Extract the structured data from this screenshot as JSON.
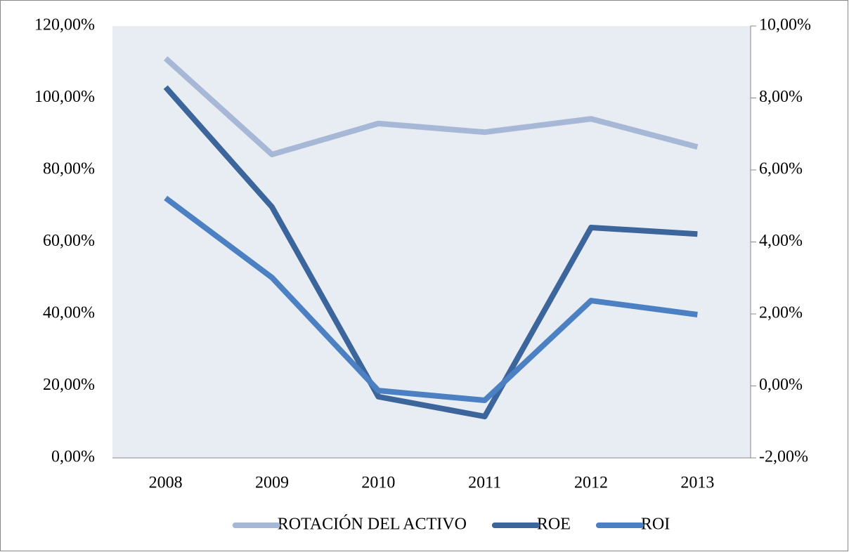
{
  "chart_data": {
    "type": "line",
    "categories": [
      "2008",
      "2009",
      "2010",
      "2011",
      "2012",
      "2013"
    ],
    "series": [
      {
        "name": "ROTACIÓN DEL ACTIVO",
        "color": "#a7b7d6",
        "values": [
          111.0,
          84.3,
          92.9,
          90.5,
          94.2,
          86.4
        ]
      },
      {
        "name": "ROE",
        "color": "#3b659b",
        "axis": "y2",
        "values": [
          8.3,
          4.97,
          -0.3,
          -0.85,
          4.4,
          4.22
        ]
      },
      {
        "name": "ROI",
        "color": "#4b80c2",
        "axis": "y2",
        "values": [
          5.22,
          3.01,
          -0.13,
          -0.4,
          2.37,
          1.98
        ]
      }
    ],
    "ylim": [
      0,
      120
    ],
    "yticks": [
      {
        "value": 0,
        "label": "0,00%"
      },
      {
        "value": 20,
        "label": "20,00%"
      },
      {
        "value": 40,
        "label": "40,00%"
      },
      {
        "value": 60,
        "label": "60,00%"
      },
      {
        "value": 80,
        "label": "80,00%"
      },
      {
        "value": 100,
        "label": "100,00%"
      },
      {
        "value": 120,
        "label": "120,00%"
      }
    ],
    "y2lim": [
      -2,
      10
    ],
    "y2ticks": [
      {
        "value": -2,
        "label": "-2,00%"
      },
      {
        "value": 0,
        "label": "0,00%"
      },
      {
        "value": 2,
        "label": "2,00%"
      },
      {
        "value": 4,
        "label": "4,00%"
      },
      {
        "value": 6,
        "label": "6,00%"
      },
      {
        "value": 8,
        "label": "8,00%"
      },
      {
        "value": 10,
        "label": "10,00%"
      }
    ],
    "legend": "bottom"
  }
}
